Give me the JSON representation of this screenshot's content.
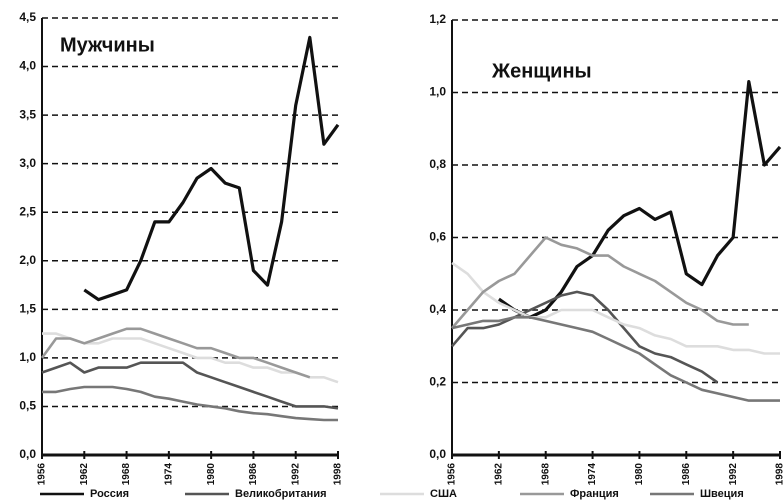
{
  "chart_data": [
    {
      "type": "line",
      "title": "Мужчины",
      "x": [
        1956,
        1958,
        1960,
        1962,
        1964,
        1966,
        1968,
        1970,
        1972,
        1974,
        1976,
        1978,
        1980,
        1982,
        1984,
        1986,
        1988,
        1990,
        1992,
        1994,
        1996,
        1998
      ],
      "xlim": [
        1956,
        1998
      ],
      "xticks": [
        1956,
        1962,
        1968,
        1974,
        1980,
        1986,
        1992,
        1998
      ],
      "ylim": [
        0,
        4.5
      ],
      "yticks": [
        {
          "value": 0,
          "label": "0,0"
        },
        {
          "value": 0.5,
          "label": "0,5"
        },
        {
          "value": 1,
          "label": "1,0"
        },
        {
          "value": 1.5,
          "label": "1,5"
        },
        {
          "value": 2,
          "label": "2,0"
        },
        {
          "value": 2.5,
          "label": "2,5"
        },
        {
          "value": 3,
          "label": "3,0"
        },
        {
          "value": 3.5,
          "label": "3,5"
        },
        {
          "value": 4,
          "label": "4,0"
        },
        {
          "value": 4.5,
          "label": "4,5"
        }
      ],
      "grid": true,
      "series": [
        {
          "name": "Россия",
          "color": "#111111",
          "values": [
            null,
            null,
            null,
            1.7,
            1.6,
            1.65,
            1.7,
            2.0,
            2.4,
            2.4,
            2.6,
            2.85,
            2.95,
            2.8,
            2.75,
            1.9,
            1.75,
            2.4,
            3.6,
            4.3,
            3.2,
            3.4
          ]
        },
        {
          "name": "Великобритания",
          "color": "#555555",
          "values": [
            0.85,
            0.9,
            0.95,
            0.85,
            0.9,
            0.9,
            0.9,
            0.95,
            0.95,
            0.95,
            0.95,
            0.85,
            0.8,
            0.75,
            0.7,
            0.65,
            0.6,
            0.55,
            0.5,
            0.5,
            0.5,
            0.48
          ]
        },
        {
          "name": "США",
          "color": "#dddddd",
          "values": [
            1.25,
            1.25,
            1.2,
            1.15,
            1.15,
            1.2,
            1.2,
            1.2,
            1.15,
            1.1,
            1.05,
            1.0,
            1.0,
            0.95,
            0.95,
            0.9,
            0.9,
            0.85,
            0.85,
            0.8,
            0.8,
            0.75
          ]
        },
        {
          "name": "Франция",
          "color": "#999999",
          "values": [
            1.0,
            1.2,
            1.2,
            1.15,
            1.2,
            1.25,
            1.3,
            1.3,
            1.25,
            1.2,
            1.15,
            1.1,
            1.1,
            1.05,
            1.0,
            1.0,
            0.95,
            0.9,
            0.85,
            0.8,
            null,
            null
          ]
        },
        {
          "name": "Швеция",
          "color": "#777777",
          "values": [
            0.65,
            0.65,
            0.68,
            0.7,
            0.7,
            0.7,
            0.68,
            0.65,
            0.6,
            0.58,
            0.55,
            0.52,
            0.5,
            0.48,
            0.45,
            0.43,
            0.42,
            0.4,
            0.38,
            0.37,
            0.36,
            0.36
          ]
        }
      ]
    },
    {
      "type": "line",
      "title": "Женщины",
      "x": [
        1956,
        1958,
        1960,
        1962,
        1964,
        1966,
        1968,
        1970,
        1972,
        1974,
        1976,
        1978,
        1980,
        1982,
        1984,
        1986,
        1988,
        1990,
        1992,
        1994,
        1996,
        1998
      ],
      "xlim": [
        1956,
        1998
      ],
      "xticks": [
        1956,
        1962,
        1968,
        1974,
        1980,
        1986,
        1992,
        1998
      ],
      "ylim": [
        0,
        1.2
      ],
      "yticks": [
        {
          "value": 0,
          "label": "0,0"
        },
        {
          "value": 0.2,
          "label": "0,2"
        },
        {
          "value": 0.4,
          "label": "0,4"
        },
        {
          "value": 0.6,
          "label": "0,6"
        },
        {
          "value": 0.8,
          "label": "0,8"
        },
        {
          "value": 1,
          "label": "1,0"
        },
        {
          "value": 1.2,
          "label": "1,2"
        }
      ],
      "grid": true,
      "series": [
        {
          "color": "#111111",
          "values": [
            null,
            null,
            null,
            0.43,
            0.4,
            0.38,
            0.4,
            0.45,
            0.52,
            0.55,
            0.62,
            0.66,
            0.68,
            0.65,
            0.67,
            0.5,
            0.47,
            0.55,
            0.6,
            1.03,
            0.8,
            0.85
          ]
        },
        {
          "color": "#555555",
          "values": [
            0.3,
            0.35,
            0.35,
            0.36,
            0.38,
            0.4,
            0.42,
            0.44,
            0.45,
            0.44,
            0.4,
            0.35,
            0.3,
            0.28,
            0.27,
            0.25,
            0.23,
            0.2,
            null,
            null,
            null,
            null
          ]
        },
        {
          "color": "#dddddd",
          "values": [
            0.53,
            0.5,
            0.45,
            0.42,
            0.4,
            0.38,
            0.38,
            0.4,
            0.4,
            0.4,
            0.38,
            0.36,
            0.35,
            0.33,
            0.32,
            0.3,
            0.3,
            0.3,
            0.29,
            0.29,
            0.28,
            0.28
          ]
        },
        {
          "color": "#999999",
          "values": [
            0.35,
            0.4,
            0.45,
            0.48,
            0.5,
            0.55,
            0.6,
            0.58,
            0.57,
            0.55,
            0.55,
            0.52,
            0.5,
            0.48,
            0.45,
            0.42,
            0.4,
            0.37,
            0.36,
            0.36,
            null,
            null
          ]
        },
        {
          "color": "#777777",
          "values": [
            0.35,
            0.36,
            0.37,
            0.37,
            0.38,
            0.38,
            0.37,
            0.36,
            0.35,
            0.34,
            0.32,
            0.3,
            0.28,
            0.25,
            0.22,
            0.2,
            0.18,
            0.17,
            0.16,
            0.15,
            0.15,
            0.15
          ]
        }
      ]
    }
  ]
}
